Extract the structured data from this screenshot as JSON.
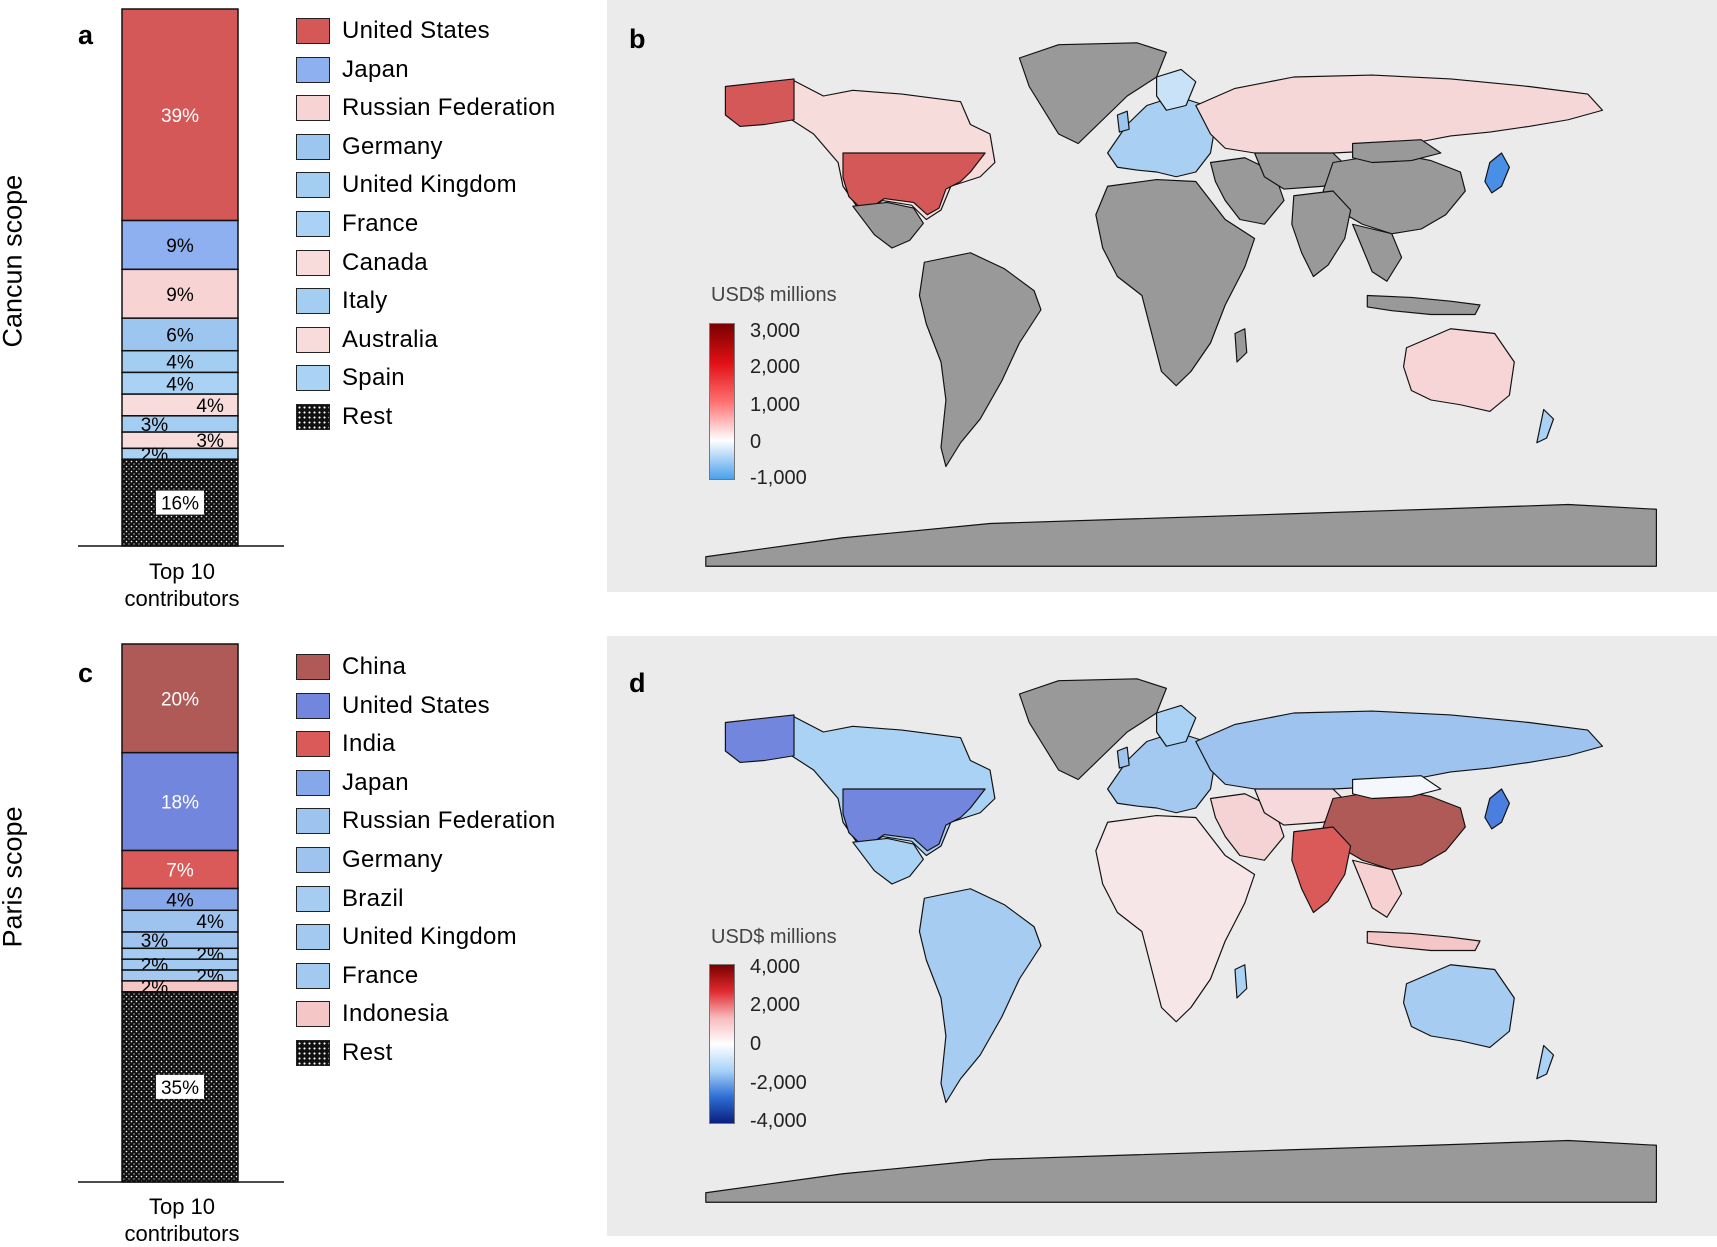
{
  "figure": {
    "row_labels": [
      "Cancun scope",
      "Paris scope"
    ],
    "panels": {
      "a": "a",
      "b": "b",
      "c": "c",
      "d": "d"
    }
  },
  "colors": {
    "map_background": "#ebebeb",
    "no_data_country": "#999999",
    "rest_pattern_bg": "#111111"
  },
  "chart_data": [
    {
      "id": "a",
      "type": "bar",
      "stacked": true,
      "categories": [
        "Top 10 contributors"
      ],
      "category_label_lines": [
        "Top 10",
        "contributors"
      ],
      "segments": [
        {
          "name": "United States",
          "value": 39,
          "label": "39%",
          "color": "#d55858",
          "label_color": "#ffffff"
        },
        {
          "name": "Japan",
          "value": 9,
          "label": "9%",
          "color": "#8eaff0",
          "label_color": "#000000"
        },
        {
          "name": "Russian Federation",
          "value": 9,
          "label": "9%",
          "color": "#f7d3d3",
          "label_color": "#000000"
        },
        {
          "name": "Germany",
          "value": 6,
          "label": "6%",
          "color": "#9cc5ef",
          "label_color": "#000000"
        },
        {
          "name": "United Kingdom",
          "value": 4,
          "label": "4%",
          "color": "#a4cdf2",
          "label_color": "#000000"
        },
        {
          "name": "France",
          "value": 4,
          "label": "4%",
          "color": "#a9d2f4",
          "label_color": "#000000"
        },
        {
          "name": "Canada",
          "value": 4,
          "label": "4%",
          "color": "#f8dcdc",
          "label_color": "#000000",
          "label_side": "right"
        },
        {
          "name": "Italy",
          "value": 3,
          "label": "3%",
          "color": "#a4cdf2",
          "label_color": "#000000",
          "label_side": "left"
        },
        {
          "name": "Australia",
          "value": 3,
          "label": "3%",
          "color": "#f8dcdc",
          "label_color": "#000000",
          "label_side": "right"
        },
        {
          "name": "Spain",
          "value": 2,
          "label": "2%",
          "color": "#a9d2f4",
          "label_color": "#000000",
          "label_side": "left"
        },
        {
          "name": "Rest",
          "value": 16,
          "label": "16%",
          "pattern": "dots",
          "color": "#111111",
          "label_color": "#000000"
        }
      ],
      "legend": [
        "United States",
        "Japan",
        "Russian Federation",
        "Germany",
        "United Kingdom",
        "France",
        "Canada",
        "Italy",
        "Australia",
        "Spain",
        "Rest"
      ]
    },
    {
      "id": "c",
      "type": "bar",
      "stacked": true,
      "categories": [
        "Top 10 contributors"
      ],
      "category_label_lines": [
        "Top 10",
        "contributors"
      ],
      "segments": [
        {
          "name": "China",
          "value": 20,
          "label": "20%",
          "color": "#b05a58",
          "label_color": "#ffffff"
        },
        {
          "name": "United States",
          "value": 18,
          "label": "18%",
          "color": "#7386de",
          "label_color": "#ffffff"
        },
        {
          "name": "India",
          "value": 7,
          "label": "7%",
          "color": "#da5a5a",
          "label_color": "#ffffff"
        },
        {
          "name": "Japan",
          "value": 4,
          "label": "4%",
          "color": "#86a8ea",
          "label_color": "#000000"
        },
        {
          "name": "Russian Federation",
          "value": 4,
          "label": "4%",
          "color": "#9ec3ef",
          "label_color": "#000000",
          "label_side": "right"
        },
        {
          "name": "Germany",
          "value": 3,
          "label": "3%",
          "color": "#9ec3ef",
          "label_color": "#000000",
          "label_side": "left"
        },
        {
          "name": "Brazil",
          "value": 2,
          "label": "2%",
          "color": "#a6ccf2",
          "label_color": "#000000",
          "label_side": "right"
        },
        {
          "name": "United Kingdom",
          "value": 2,
          "label": "2%",
          "color": "#a3c9f1",
          "label_color": "#000000",
          "label_side": "left"
        },
        {
          "name": "France",
          "value": 2,
          "label": "2%",
          "color": "#a3c9f1",
          "label_color": "#000000",
          "label_side": "right"
        },
        {
          "name": "Indonesia",
          "value": 2,
          "label": "2%",
          "color": "#f5c6c6",
          "label_color": "#000000",
          "label_side": "left"
        },
        {
          "name": "Rest",
          "value": 35,
          "label": "35%",
          "pattern": "dots",
          "color": "#111111",
          "label_color": "#000000"
        }
      ],
      "legend": [
        "China",
        "United States",
        "India",
        "Japan",
        "Russian Federation",
        "Germany",
        "Brazil",
        "United Kingdom",
        "France",
        "Indonesia",
        "Rest"
      ]
    },
    {
      "id": "b",
      "type": "heatmap",
      "subtype": "choropleth",
      "colorbar": {
        "title": "USD$ millions",
        "ticks": [
          "3,000",
          "2,000",
          "1,000",
          "0",
          "-1,000"
        ],
        "tick_values": [
          3000,
          2000,
          1000,
          0,
          -1000
        ],
        "range": [
          -1000,
          3000
        ],
        "stops": [
          "#4aa0ec",
          "#ffffff",
          "#ff6f70",
          "#e01015",
          "#7a0000"
        ]
      },
      "highlighted_countries": [
        "United States",
        "Japan",
        "Russian Federation",
        "Germany",
        "United Kingdom",
        "France",
        "Canada",
        "Italy",
        "Australia",
        "Spain"
      ]
    },
    {
      "id": "d",
      "type": "heatmap",
      "subtype": "choropleth",
      "colorbar": {
        "title": "USD$ millions",
        "ticks": [
          "4,000",
          "2,000",
          "0",
          "-2,000",
          "-4,000"
        ],
        "tick_values": [
          4000,
          2000,
          0,
          -2000,
          -4000
        ],
        "range": [
          -4000,
          4000
        ],
        "stops": [
          "#0b1f7e",
          "#2f6fd6",
          "#a9d3f8",
          "#ffffff",
          "#f7b9bc",
          "#e02a2f",
          "#7a0000"
        ]
      },
      "highlighted_countries": [
        "China",
        "United States",
        "India",
        "Japan",
        "Russian Federation",
        "Germany",
        "Brazil",
        "United Kingdom",
        "France",
        "Indonesia"
      ]
    }
  ]
}
